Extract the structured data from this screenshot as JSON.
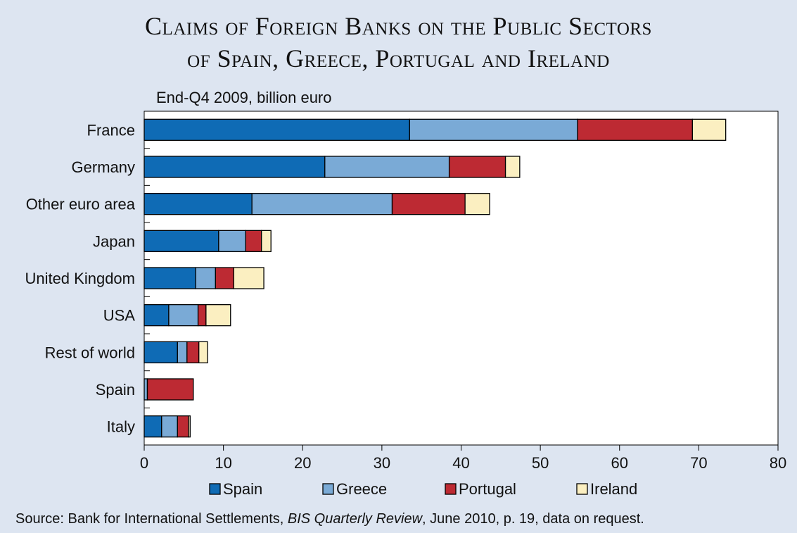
{
  "title_line1": "Claims of Foreign Banks on the Public Sectors",
  "title_line2": "of Spain, Greece, Portugal and Ireland",
  "source": {
    "prefix": "Source: Bank for International Settlements, ",
    "publication": "BIS Quarterly Review",
    "suffix": ", June 2010, p. 19, data on request."
  },
  "colors": {
    "background": "#dde5f1",
    "plot_background": "#ffffff",
    "Spain": "#0f6bb5",
    "Greece": "#7aaad6",
    "Portugal": "#bd2a33",
    "Ireland": "#fbefc1"
  },
  "chart_data": {
    "type": "bar",
    "orientation": "horizontal",
    "stacked": true,
    "subtitle": "End-Q4 2009, billion euro",
    "categories": [
      "France",
      "Germany",
      "Other euro area",
      "Japan",
      "United Kingdom",
      "USA",
      "Rest of world",
      "Spain",
      "Italy"
    ],
    "series": [
      {
        "name": "Spain",
        "values": [
          33.5,
          22.8,
          13.6,
          9.4,
          6.5,
          3.1,
          4.2,
          0.0,
          2.2
        ]
      },
      {
        "name": "Greece",
        "values": [
          21.2,
          15.7,
          17.7,
          3.4,
          2.5,
          3.7,
          1.2,
          0.4,
          2.0
        ]
      },
      {
        "name": "Portugal",
        "values": [
          14.5,
          7.1,
          9.2,
          2.0,
          2.3,
          1.0,
          1.5,
          5.8,
          1.4
        ]
      },
      {
        "name": "Ireland",
        "values": [
          4.2,
          1.8,
          3.1,
          1.2,
          3.8,
          3.1,
          1.1,
          0.0,
          0.2
        ]
      }
    ],
    "xlim": [
      0,
      80
    ],
    "xticks": [
      0,
      10,
      20,
      30,
      40,
      50,
      60,
      70,
      80
    ],
    "grid": false,
    "legend_position": "bottom"
  }
}
